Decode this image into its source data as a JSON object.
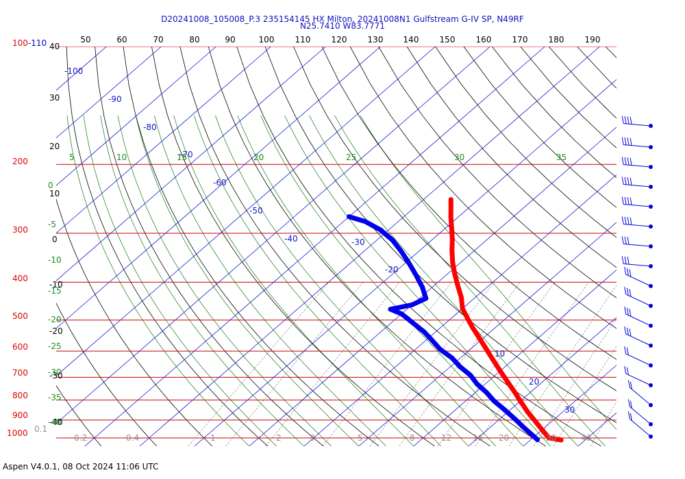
{
  "title": {
    "line1": "D20241008_105008_P.3 235154145 HX Milton, 20241008N1 Gulfstream G-IV SP, N49RF",
    "line2": "N25.7410 W83.7771"
  },
  "footer": "Aspen V4.0.1, 08 Oct 2024  11:06 UTC",
  "chart_data": {
    "type": "line",
    "diagram": "skew-T log-P",
    "top_temp_scale_F": [
      "50",
      "60",
      "70",
      "80",
      "90",
      "100",
      "110",
      "120",
      "130",
      "140",
      "150",
      "160",
      "170",
      "180",
      "190"
    ],
    "pressure_labels_hPa": [
      "100-110",
      "200",
      "300",
      "400",
      "500",
      "600",
      "700",
      "800",
      "900",
      "1000"
    ],
    "height_labels_kft": [
      "40",
      "30",
      "20",
      "10",
      "0",
      "-10",
      "-20",
      "-30",
      "-40"
    ],
    "isotherm_labels_C": [
      "-100",
      "-90",
      "-80",
      "-70",
      "-60",
      "-50",
      "-40",
      "-30",
      "-20",
      "10",
      "20",
      "30"
    ],
    "theta_e_labels": [
      "5",
      "10",
      "15",
      "20",
      "25",
      "30",
      "35"
    ],
    "dry_adiabat_labels": [
      "0",
      "-5",
      "-10",
      "-15",
      "-20",
      "-25",
      "-30",
      "-35",
      "-40"
    ],
    "mixing_ratio_labels": [
      "0.1",
      "0.2",
      "0.4",
      "1",
      "2",
      "3",
      "5",
      "8",
      "12",
      "16",
      "20",
      "30",
      "40"
    ],
    "series": [
      {
        "name": "Temperature",
        "color": "#ff0000",
        "points": [
          {
            "p": 246,
            "t": -45.0
          },
          {
            "p": 258,
            "t": -43.3
          },
          {
            "p": 273,
            "t": -41.3
          },
          {
            "p": 290,
            "t": -39.0
          },
          {
            "p": 310,
            "t": -36.5
          },
          {
            "p": 333,
            "t": -34.0
          },
          {
            "p": 356,
            "t": -31.5
          },
          {
            "p": 380,
            "t": -28.8
          },
          {
            "p": 407,
            "t": -25.8
          },
          {
            "p": 437,
            "t": -22.6
          },
          {
            "p": 467,
            "t": -20.0
          },
          {
            "p": 493,
            "t": -17.2
          },
          {
            "p": 522,
            "t": -14.2
          },
          {
            "p": 555,
            "t": -10.8
          },
          {
            "p": 590,
            "t": -7.4
          },
          {
            "p": 630,
            "t": -3.8
          },
          {
            "p": 672,
            "t": -0.2
          },
          {
            "p": 716,
            "t": 3.4
          },
          {
            "p": 760,
            "t": 6.8
          },
          {
            "p": 808,
            "t": 10.2
          },
          {
            "p": 858,
            "t": 13.6
          },
          {
            "p": 910,
            "t": 17.2
          },
          {
            "p": 963,
            "t": 20.6
          },
          {
            "p": 1000,
            "t": 23.0
          },
          {
            "p": 1012,
            "t": 25.6
          }
        ]
      },
      {
        "name": "Dewpoint",
        "color": "#0000ee",
        "points": [
          {
            "p": 272,
            "t": -60.0
          },
          {
            "p": 280,
            "t": -56.0
          },
          {
            "p": 294,
            "t": -51.5
          },
          {
            "p": 312,
            "t": -47.2
          },
          {
            "p": 333,
            "t": -43.3
          },
          {
            "p": 357,
            "t": -39.4
          },
          {
            "p": 383,
            "t": -35.6
          },
          {
            "p": 412,
            "t": -31.8
          },
          {
            "p": 440,
            "t": -28.8
          },
          {
            "p": 457,
            "t": -30.0
          },
          {
            "p": 469,
            "t": -33.0
          },
          {
            "p": 482,
            "t": -30.0
          },
          {
            "p": 495,
            "t": -28.0
          },
          {
            "p": 512,
            "t": -25.5
          },
          {
            "p": 535,
            "t": -22.2
          },
          {
            "p": 562,
            "t": -19.0
          },
          {
            "p": 593,
            "t": -15.6
          },
          {
            "p": 625,
            "t": -11.5
          },
          {
            "p": 658,
            "t": -8.2
          },
          {
            "p": 692,
            "t": -4.5
          },
          {
            "p": 728,
            "t": -1.5
          },
          {
            "p": 765,
            "t": 2.0
          },
          {
            "p": 805,
            "t": 5.2
          },
          {
            "p": 848,
            "t": 9.0
          },
          {
            "p": 895,
            "t": 12.8
          },
          {
            "p": 945,
            "t": 16.5
          },
          {
            "p": 990,
            "t": 19.8
          },
          {
            "p": 1010,
            "t": 21.2
          }
        ]
      }
    ],
    "wind_barbs_count": 17
  }
}
